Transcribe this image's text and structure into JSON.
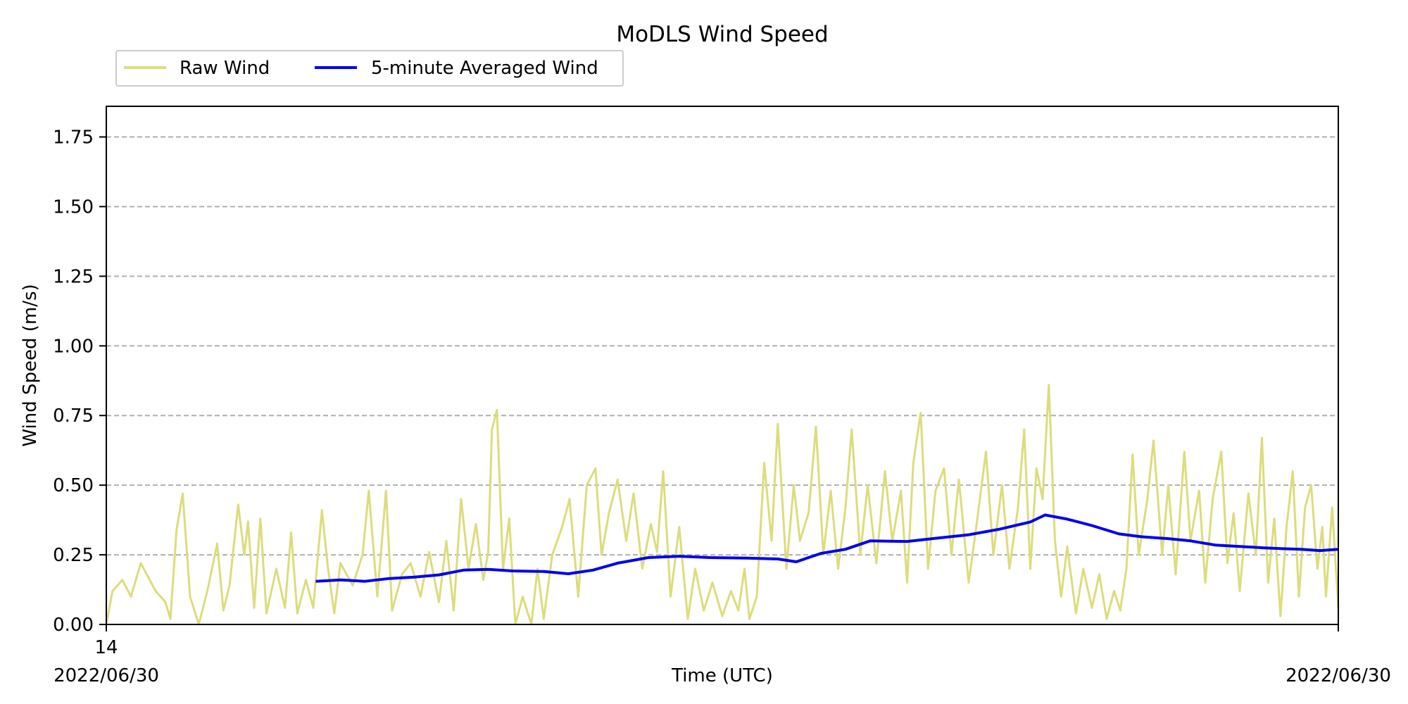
{
  "chart_data": {
    "type": "line",
    "title": "MoDLS Wind Speed",
    "xlabel": "Time (UTC)",
    "ylabel": "Wind Speed (m/s)",
    "x_tick_labels": {
      "start_hour": "14",
      "start_date": "2022/06/30",
      "end_date": "2022/06/30"
    },
    "ylim": [
      0,
      1.86
    ],
    "y_ticks": [
      "0.00",
      "0.25",
      "0.50",
      "0.75",
      "1.00",
      "1.25",
      "1.50",
      "1.75"
    ],
    "grid": "y-dashed",
    "legend_placement": "top-left (outside axes)",
    "series": [
      {
        "name": "Raw Wind",
        "color": "#dcdc7c",
        "keypoints": [
          [
            0.0,
            0.0
          ],
          [
            0.005,
            0.12
          ],
          [
            0.013,
            0.16
          ],
          [
            0.02,
            0.1
          ],
          [
            0.028,
            0.22
          ],
          [
            0.04,
            0.12
          ],
          [
            0.048,
            0.08
          ],
          [
            0.052,
            0.02
          ],
          [
            0.057,
            0.34
          ],
          [
            0.062,
            0.47
          ],
          [
            0.068,
            0.1
          ],
          [
            0.075,
            0.0
          ],
          [
            0.082,
            0.12
          ],
          [
            0.09,
            0.29
          ],
          [
            0.095,
            0.05
          ],
          [
            0.1,
            0.14
          ],
          [
            0.107,
            0.43
          ],
          [
            0.112,
            0.25
          ],
          [
            0.115,
            0.37
          ],
          [
            0.12,
            0.06
          ],
          [
            0.125,
            0.38
          ],
          [
            0.13,
            0.04
          ],
          [
            0.138,
            0.2
          ],
          [
            0.145,
            0.06
          ],
          [
            0.15,
            0.33
          ],
          [
            0.155,
            0.04
          ],
          [
            0.162,
            0.16
          ],
          [
            0.168,
            0.06
          ],
          [
            0.175,
            0.41
          ],
          [
            0.18,
            0.2
          ],
          [
            0.185,
            0.04
          ],
          [
            0.19,
            0.22
          ],
          [
            0.2,
            0.14
          ],
          [
            0.208,
            0.25
          ],
          [
            0.213,
            0.48
          ],
          [
            0.22,
            0.1
          ],
          [
            0.227,
            0.48
          ],
          [
            0.232,
            0.05
          ],
          [
            0.24,
            0.18
          ],
          [
            0.247,
            0.22
          ],
          [
            0.255,
            0.1
          ],
          [
            0.262,
            0.26
          ],
          [
            0.27,
            0.08
          ],
          [
            0.276,
            0.3
          ],
          [
            0.282,
            0.05
          ],
          [
            0.288,
            0.45
          ],
          [
            0.294,
            0.2
          ],
          [
            0.3,
            0.36
          ],
          [
            0.306,
            0.16
          ],
          [
            0.31,
            0.26
          ],
          [
            0.313,
            0.7
          ],
          [
            0.317,
            0.77
          ],
          [
            0.322,
            0.2
          ],
          [
            0.327,
            0.38
          ],
          [
            0.332,
            0.0
          ],
          [
            0.338,
            0.1
          ],
          [
            0.345,
            0.0
          ],
          [
            0.35,
            0.2
          ],
          [
            0.355,
            0.02
          ],
          [
            0.362,
            0.25
          ],
          [
            0.37,
            0.35
          ],
          [
            0.376,
            0.45
          ],
          [
            0.383,
            0.1
          ],
          [
            0.39,
            0.5
          ],
          [
            0.397,
            0.56
          ],
          [
            0.402,
            0.25
          ],
          [
            0.408,
            0.4
          ],
          [
            0.415,
            0.52
          ],
          [
            0.422,
            0.3
          ],
          [
            0.428,
            0.47
          ],
          [
            0.435,
            0.2
          ],
          [
            0.442,
            0.36
          ],
          [
            0.447,
            0.26
          ],
          [
            0.452,
            0.55
          ],
          [
            0.458,
            0.1
          ],
          [
            0.465,
            0.35
          ],
          [
            0.472,
            0.02
          ],
          [
            0.478,
            0.2
          ],
          [
            0.485,
            0.05
          ],
          [
            0.492,
            0.15
          ],
          [
            0.5,
            0.03
          ],
          [
            0.507,
            0.12
          ],
          [
            0.513,
            0.05
          ],
          [
            0.518,
            0.2
          ],
          [
            0.522,
            0.02
          ],
          [
            0.528,
            0.1
          ],
          [
            0.534,
            0.58
          ],
          [
            0.54,
            0.3
          ],
          [
            0.545,
            0.72
          ],
          [
            0.552,
            0.2
          ],
          [
            0.558,
            0.5
          ],
          [
            0.563,
            0.3
          ],
          [
            0.57,
            0.4
          ],
          [
            0.576,
            0.71
          ],
          [
            0.582,
            0.25
          ],
          [
            0.588,
            0.48
          ],
          [
            0.594,
            0.2
          ],
          [
            0.6,
            0.42
          ],
          [
            0.605,
            0.7
          ],
          [
            0.612,
            0.25
          ],
          [
            0.618,
            0.5
          ],
          [
            0.625,
            0.22
          ],
          [
            0.632,
            0.55
          ],
          [
            0.638,
            0.3
          ],
          [
            0.645,
            0.48
          ],
          [
            0.65,
            0.15
          ],
          [
            0.655,
            0.58
          ],
          [
            0.661,
            0.76
          ],
          [
            0.667,
            0.2
          ],
          [
            0.673,
            0.48
          ],
          [
            0.68,
            0.56
          ],
          [
            0.686,
            0.25
          ],
          [
            0.692,
            0.52
          ],
          [
            0.7,
            0.15
          ],
          [
            0.707,
            0.38
          ],
          [
            0.714,
            0.62
          ],
          [
            0.72,
            0.25
          ],
          [
            0.727,
            0.5
          ],
          [
            0.733,
            0.2
          ],
          [
            0.74,
            0.42
          ],
          [
            0.745,
            0.7
          ],
          [
            0.75,
            0.2
          ],
          [
            0.755,
            0.56
          ],
          [
            0.76,
            0.45
          ],
          [
            0.765,
            0.86
          ],
          [
            0.77,
            0.3
          ],
          [
            0.775,
            0.1
          ],
          [
            0.78,
            0.28
          ],
          [
            0.787,
            0.04
          ],
          [
            0.793,
            0.2
          ],
          [
            0.8,
            0.06
          ],
          [
            0.806,
            0.18
          ],
          [
            0.812,
            0.02
          ],
          [
            0.818,
            0.12
          ],
          [
            0.823,
            0.05
          ],
          [
            0.828,
            0.2
          ],
          [
            0.833,
            0.61
          ],
          [
            0.838,
            0.25
          ],
          [
            0.845,
            0.45
          ],
          [
            0.85,
            0.66
          ],
          [
            0.857,
            0.25
          ],
          [
            0.862,
            0.5
          ],
          [
            0.868,
            0.18
          ],
          [
            0.875,
            0.62
          ],
          [
            0.88,
            0.3
          ],
          [
            0.887,
            0.48
          ],
          [
            0.892,
            0.15
          ],
          [
            0.898,
            0.45
          ],
          [
            0.905,
            0.62
          ],
          [
            0.91,
            0.22
          ],
          [
            0.915,
            0.4
          ],
          [
            0.92,
            0.12
          ],
          [
            0.927,
            0.47
          ],
          [
            0.933,
            0.25
          ],
          [
            0.938,
            0.67
          ],
          [
            0.943,
            0.15
          ],
          [
            0.948,
            0.38
          ],
          [
            0.953,
            0.03
          ],
          [
            0.958,
            0.35
          ],
          [
            0.963,
            0.55
          ],
          [
            0.968,
            0.1
          ],
          [
            0.973,
            0.42
          ],
          [
            0.978,
            0.5
          ],
          [
            0.983,
            0.2
          ],
          [
            0.987,
            0.35
          ],
          [
            0.99,
            0.1
          ],
          [
            0.995,
            0.42
          ],
          [
            1.0,
            0.06
          ]
        ]
      },
      {
        "name": "5-minute Averaged Wind",
        "color": "#0000ee",
        "keypoints": [
          [
            0.17,
            0.155
          ],
          [
            0.19,
            0.16
          ],
          [
            0.21,
            0.155
          ],
          [
            0.23,
            0.165
          ],
          [
            0.25,
            0.17
          ],
          [
            0.27,
            0.178
          ],
          [
            0.29,
            0.195
          ],
          [
            0.31,
            0.198
          ],
          [
            0.33,
            0.192
          ],
          [
            0.355,
            0.19
          ],
          [
            0.375,
            0.182
          ],
          [
            0.395,
            0.195
          ],
          [
            0.415,
            0.22
          ],
          [
            0.44,
            0.24
          ],
          [
            0.465,
            0.245
          ],
          [
            0.49,
            0.24
          ],
          [
            0.52,
            0.238
          ],
          [
            0.545,
            0.235
          ],
          [
            0.56,
            0.225
          ],
          [
            0.58,
            0.255
          ],
          [
            0.6,
            0.27
          ],
          [
            0.62,
            0.3
          ],
          [
            0.65,
            0.298
          ],
          [
            0.675,
            0.31
          ],
          [
            0.7,
            0.322
          ],
          [
            0.725,
            0.342
          ],
          [
            0.75,
            0.368
          ],
          [
            0.762,
            0.393
          ],
          [
            0.78,
            0.378
          ],
          [
            0.8,
            0.355
          ],
          [
            0.822,
            0.325
          ],
          [
            0.84,
            0.315
          ],
          [
            0.862,
            0.308
          ],
          [
            0.88,
            0.3
          ],
          [
            0.9,
            0.285
          ],
          [
            0.92,
            0.28
          ],
          [
            0.94,
            0.275
          ],
          [
            0.955,
            0.272
          ],
          [
            0.97,
            0.27
          ],
          [
            0.985,
            0.265
          ],
          [
            1.0,
            0.27
          ]
        ]
      }
    ]
  }
}
